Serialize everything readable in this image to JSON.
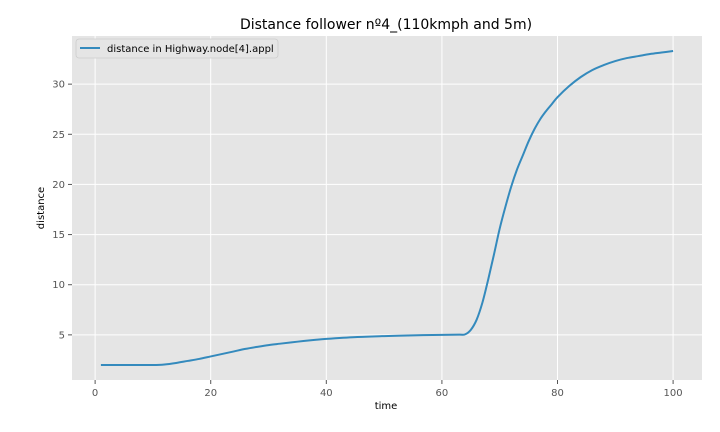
{
  "chart_data": {
    "type": "line",
    "title": "Distance follower nº4_(110kmph and 5m)",
    "xlabel": "time",
    "ylabel": "distance",
    "xlim": [
      -4,
      105
    ],
    "ylim": [
      0.5,
      34.8
    ],
    "x_ticks": [
      0,
      20,
      40,
      60,
      80,
      100
    ],
    "y_ticks": [
      5,
      10,
      15,
      20,
      25,
      30
    ],
    "x_tick_labels": [
      "0",
      "20",
      "40",
      "60",
      "80",
      "100"
    ],
    "y_tick_labels": [
      "5",
      "10",
      "15",
      "20",
      "25",
      "30"
    ],
    "grid": true,
    "legend_position": "top-left",
    "colors": {
      "background": "#e5e5e5",
      "grid": "#ffffff",
      "line": "#348abd"
    },
    "series": [
      {
        "name": "distance in Highway.node[4].appl",
        "x": [
          1,
          5,
          10,
          12,
          14,
          16,
          18,
          20,
          22,
          24,
          26,
          28,
          30,
          32,
          35,
          38,
          40,
          45,
          50,
          55,
          60,
          63,
          64,
          65,
          66,
          67,
          68,
          69,
          70,
          71,
          72,
          73,
          74,
          75,
          76,
          77,
          78,
          79,
          80,
          82,
          84,
          86,
          88,
          90,
          92,
          94,
          96,
          98,
          100
        ],
        "y": [
          2.0,
          2.0,
          2.0,
          2.05,
          2.2,
          2.4,
          2.6,
          2.85,
          3.1,
          3.35,
          3.6,
          3.8,
          3.98,
          4.12,
          4.32,
          4.5,
          4.6,
          4.78,
          4.88,
          4.95,
          5.0,
          5.02,
          5.05,
          5.5,
          6.5,
          8.2,
          10.5,
          13.0,
          15.6,
          17.8,
          19.8,
          21.5,
          22.9,
          24.3,
          25.5,
          26.5,
          27.3,
          28.0,
          28.7,
          29.8,
          30.7,
          31.4,
          31.9,
          32.3,
          32.6,
          32.8,
          33.0,
          33.15,
          33.3
        ]
      }
    ]
  }
}
